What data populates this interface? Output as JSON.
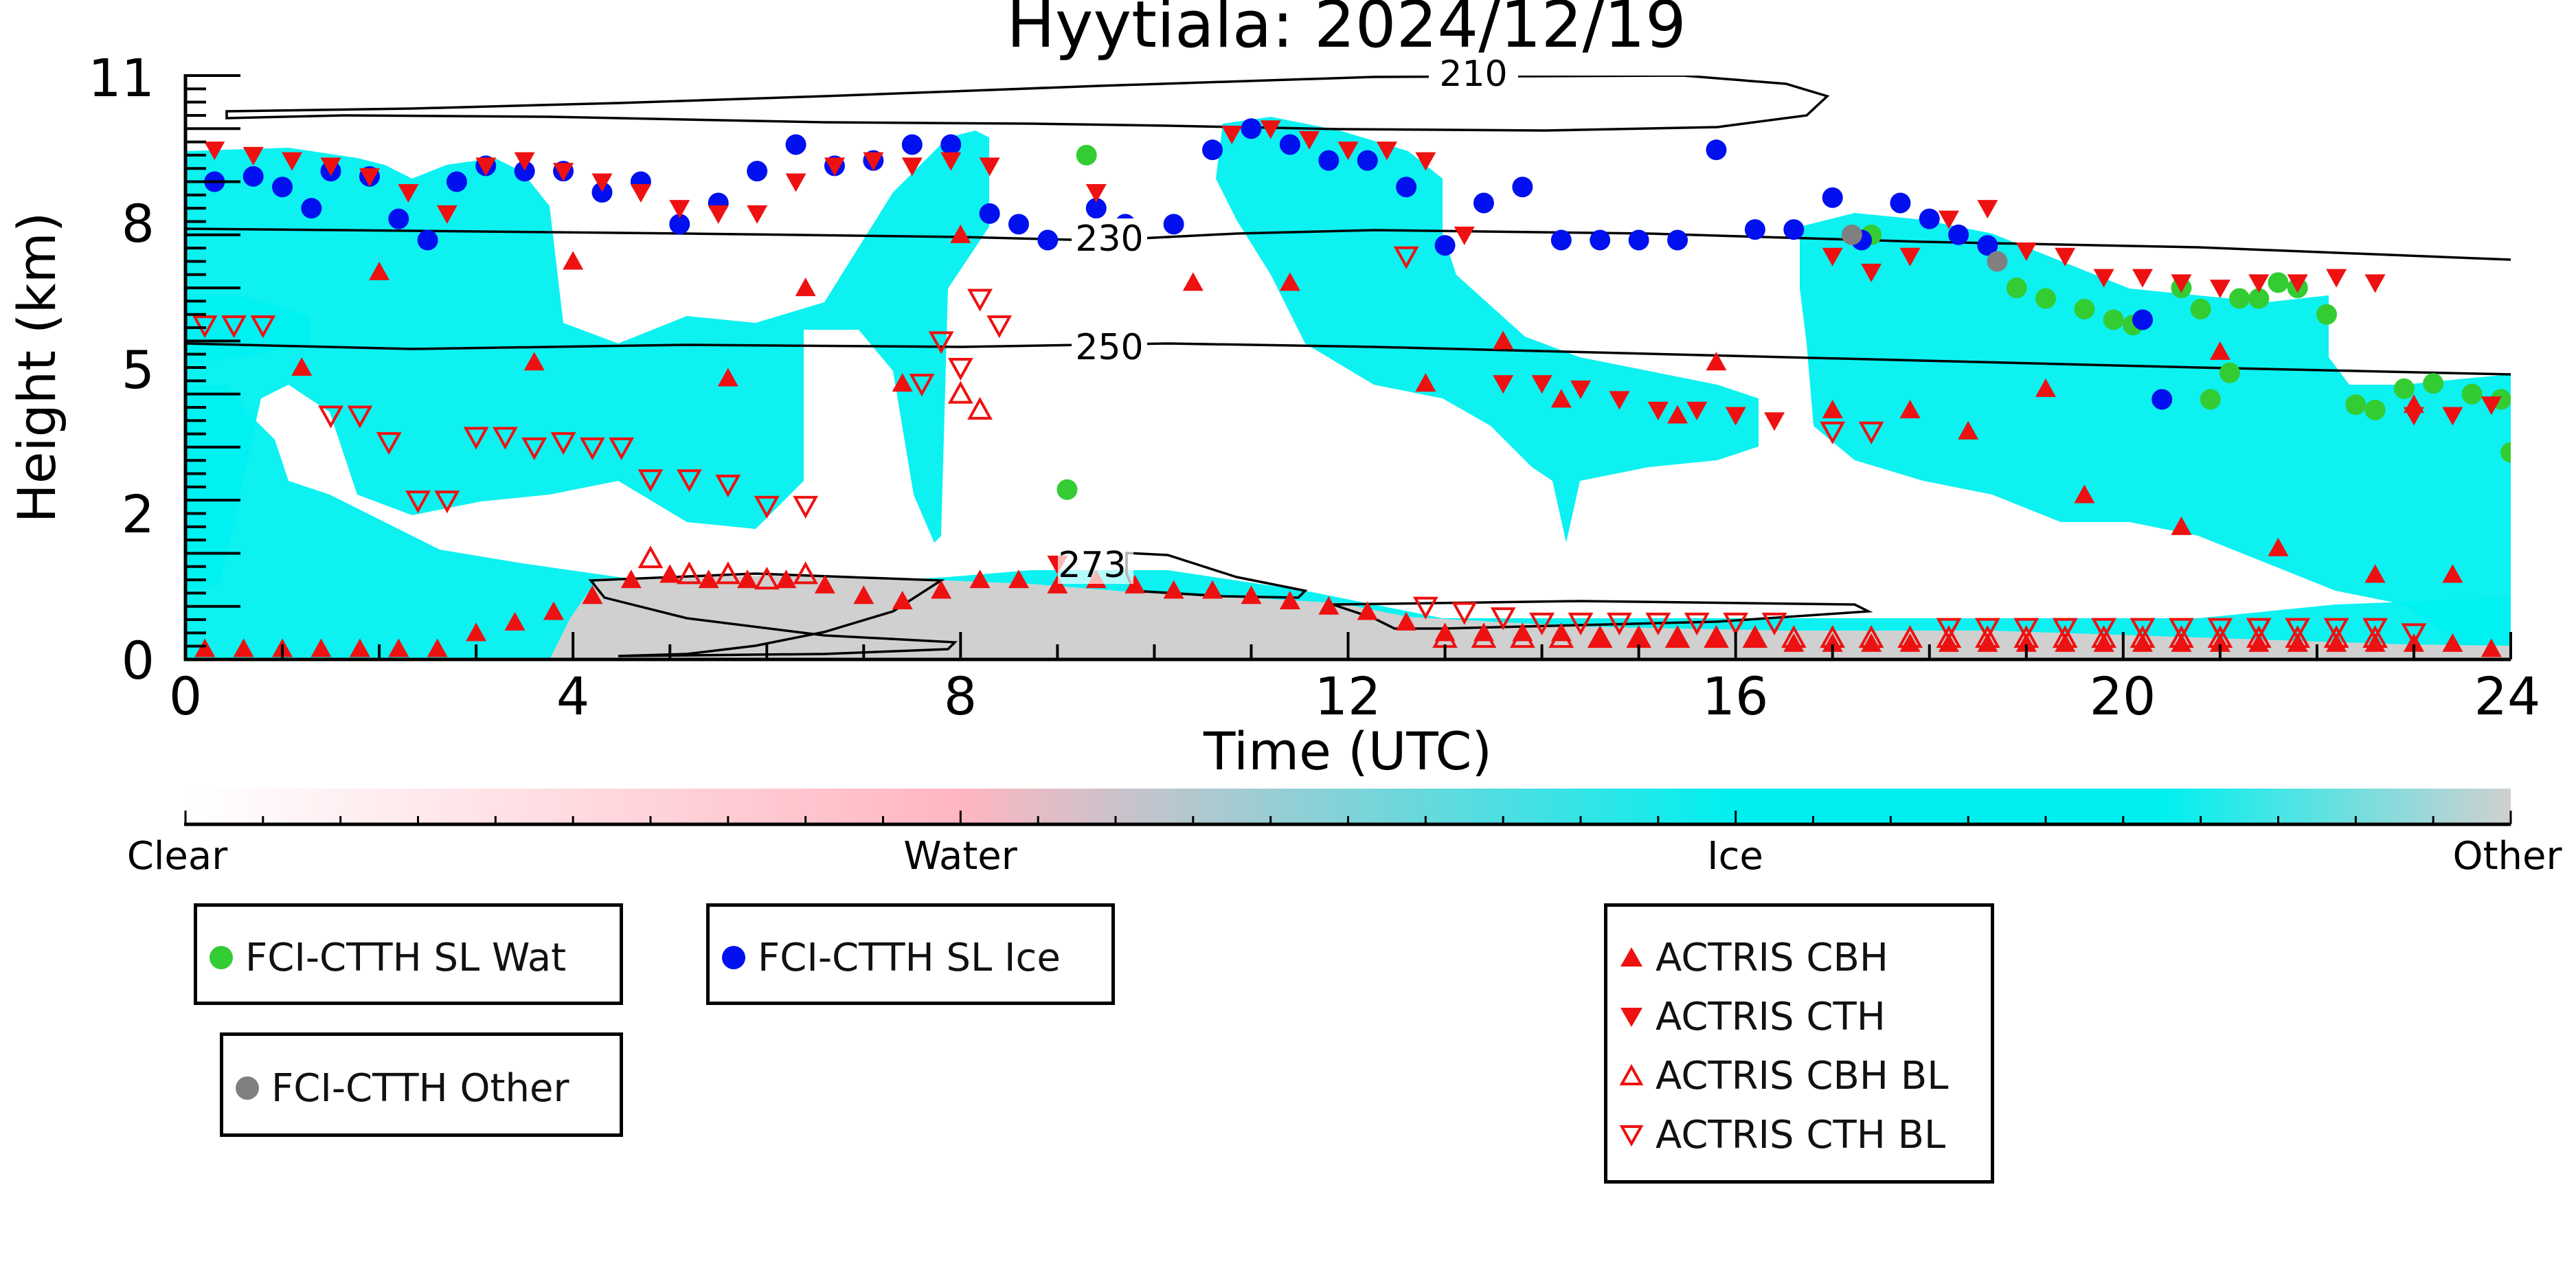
{
  "chart_data": {
    "type": "scatter",
    "title": "Hyytiala: 2024/12/19",
    "xlabel": "Time (UTC)",
    "ylabel": "Height (km)",
    "xlim": [
      0,
      24
    ],
    "ylim": [
      0,
      11
    ],
    "xticks": [
      "0",
      "4",
      "8",
      "12",
      "16",
      "20",
      "24"
    ],
    "yticks": [
      "0",
      "2",
      "5",
      "8",
      "11"
    ],
    "colorbar": {
      "ticklabels": [
        "Clear",
        "Water",
        "Ice",
        "Other"
      ],
      "colors": [
        "#ffffff",
        "#ffb6c1",
        "#00f0f0",
        "#d0d0d0"
      ]
    },
    "colors": {
      "ice_cloud": "#00f0f0",
      "other_layer": "#d0d0d0",
      "actris": "#ee1111",
      "wat": "#33cc33",
      "ice": "#0010ee",
      "other": "#808080"
    },
    "contour_labels": [
      "210",
      "230",
      "250",
      "273"
    ],
    "series": [
      {
        "name": "FCI-CTTH SL Wat",
        "marker": "circle",
        "color": "#33cc33",
        "x": [
          9.3,
          9.1,
          17.4,
          18.9,
          19.2,
          19.6,
          19.9,
          20.1,
          20.6,
          20.8,
          21.1,
          21.2,
          21.4,
          21.6,
          21.8,
          22.1,
          22.4,
          22.6,
          22.9,
          23.2,
          23.6,
          23.9,
          24.0,
          20.4,
          20.9
        ],
        "y": [
          9.5,
          3.2,
          8.0,
          7.0,
          6.8,
          6.6,
          6.4,
          6.3,
          7.0,
          6.6,
          5.4,
          6.8,
          6.8,
          7.1,
          7.0,
          6.5,
          4.8,
          4.7,
          5.1,
          5.2,
          5.0,
          4.9,
          3.9,
          4.9,
          4.9
        ]
      },
      {
        "name": "FCI-CTTH SL Ice",
        "marker": "circle",
        "color": "#0010ee",
        "x": [
          0.3,
          0.7,
          1.0,
          1.3,
          1.5,
          1.9,
          2.2,
          2.5,
          2.8,
          3.1,
          3.5,
          3.9,
          4.3,
          4.7,
          5.1,
          5.5,
          5.9,
          6.3,
          6.7,
          7.1,
          7.5,
          7.9,
          8.3,
          8.6,
          8.9,
          9.4,
          9.7,
          10.2,
          10.6,
          11.0,
          11.4,
          11.8,
          12.2,
          12.6,
          13.0,
          13.4,
          13.8,
          14.2,
          14.6,
          15.0,
          15.4,
          15.8,
          16.2,
          16.6,
          17.0,
          17.3,
          17.7,
          18.0,
          18.3,
          18.6,
          20.2,
          20.4
        ],
        "y": [
          9.0,
          9.1,
          8.9,
          8.5,
          9.2,
          9.1,
          8.3,
          7.9,
          9.0,
          9.3,
          9.2,
          9.2,
          8.8,
          9.0,
          8.2,
          8.6,
          9.2,
          9.7,
          9.3,
          9.4,
          9.7,
          9.7,
          8.4,
          8.2,
          7.9,
          8.5,
          8.2,
          8.2,
          9.6,
          10.0,
          9.7,
          9.4,
          9.4,
          8.9,
          7.8,
          8.6,
          8.9,
          7.9,
          7.9,
          7.9,
          7.9,
          9.6,
          8.1,
          8.1,
          8.7,
          7.9,
          8.6,
          8.3,
          8.0,
          7.8,
          6.4,
          4.9
        ]
      },
      {
        "name": "FCI-CTTH Other",
        "marker": "circle",
        "color": "#808080",
        "x": [
          17.2,
          18.7
        ],
        "y": [
          8.0,
          7.5
        ]
      },
      {
        "name": "ACTRIS CBH",
        "marker": "triangle-up",
        "color": "#ee1111",
        "x": [
          0.2,
          0.6,
          1.0,
          1.4,
          1.8,
          2.2,
          2.6,
          3.0,
          3.4,
          3.8,
          4.2,
          4.6,
          5.0,
          5.4,
          5.8,
          6.2,
          6.6,
          7.0,
          7.4,
          7.8,
          8.2,
          8.6,
          9.0,
          9.4,
          9.8,
          10.2,
          10.6,
          11.0,
          11.4,
          11.8,
          12.2,
          12.6,
          13.0,
          13.4,
          13.8,
          14.2,
          14.6,
          15.0,
          15.4,
          15.8,
          16.2,
          16.6,
          17.0,
          17.4,
          17.8,
          18.2,
          18.6,
          19.0,
          19.4,
          19.8,
          20.2,
          20.6,
          21.0,
          21.4,
          21.8,
          22.2,
          22.6,
          23.0,
          23.4,
          23.8,
          1.2,
          3.6,
          5.6,
          7.4,
          10.4,
          12.8,
          14.2,
          15.4,
          17.0,
          18.4,
          19.6,
          20.6,
          21.6,
          22.6,
          23.4,
          2.0,
          4.0,
          6.4,
          8.0,
          11.4,
          13.6,
          15.8,
          17.8,
          19.2,
          21.0,
          23.0
        ],
        "y": [
          0.2,
          0.2,
          0.2,
          0.2,
          0.2,
          0.2,
          0.2,
          0.5,
          0.7,
          0.9,
          1.2,
          1.5,
          1.6,
          1.5,
          1.5,
          1.5,
          1.4,
          1.2,
          1.1,
          1.3,
          1.5,
          1.5,
          1.4,
          1.5,
          1.4,
          1.3,
          1.3,
          1.2,
          1.1,
          1.0,
          0.9,
          0.7,
          0.5,
          0.5,
          0.5,
          0.5,
          0.4,
          0.4,
          0.4,
          0.4,
          0.4,
          0.3,
          0.3,
          0.3,
          0.3,
          0.3,
          0.3,
          0.3,
          0.3,
          0.3,
          0.3,
          0.3,
          0.3,
          0.3,
          0.3,
          0.3,
          0.3,
          0.3,
          0.3,
          0.2,
          5.5,
          5.6,
          5.3,
          5.2,
          7.1,
          5.2,
          4.9,
          4.6,
          4.7,
          4.3,
          3.1,
          2.5,
          2.1,
          1.6,
          1.6,
          7.3,
          7.5,
          7.0,
          8.0,
          7.1,
          6.0,
          5.6,
          4.7,
          5.1,
          5.8,
          4.8
        ]
      },
      {
        "name": "ACTRIS CTH",
        "marker": "triangle-down",
        "color": "#ee1111",
        "x": [
          0.3,
          0.7,
          1.1,
          1.5,
          1.9,
          2.3,
          2.7,
          3.1,
          3.5,
          3.9,
          4.3,
          4.7,
          5.1,
          5.5,
          5.9,
          6.3,
          6.7,
          7.1,
          7.5,
          7.9,
          8.3,
          10.8,
          11.2,
          11.6,
          12.0,
          12.4,
          12.8,
          13.2,
          13.6,
          14.0,
          14.4,
          14.8,
          15.2,
          15.6,
          16.0,
          16.4,
          17.0,
          17.4,
          17.8,
          18.2,
          18.6,
          19.0,
          19.4,
          19.8,
          20.2,
          20.6,
          21.0,
          21.4,
          21.8,
          22.2,
          22.6,
          23.0,
          23.4,
          23.8,
          9.4,
          9.0
        ],
        "y": [
          9.6,
          9.5,
          9.4,
          9.3,
          9.1,
          8.8,
          8.4,
          9.3,
          9.4,
          9.2,
          9.0,
          8.8,
          8.5,
          8.4,
          8.4,
          9.0,
          9.3,
          9.4,
          9.3,
          9.4,
          9.3,
          9.9,
          10.0,
          9.8,
          9.6,
          9.6,
          9.4,
          8.0,
          5.2,
          5.2,
          5.1,
          4.9,
          4.7,
          4.7,
          4.6,
          4.5,
          7.6,
          7.3,
          7.6,
          8.3,
          8.5,
          7.7,
          7.6,
          7.2,
          7.2,
          7.1,
          7.0,
          7.1,
          7.1,
          7.2,
          7.1,
          4.6,
          4.6,
          4.8,
          8.8,
          1.8
        ]
      },
      {
        "name": "ACTRIS CBH BL",
        "marker": "triangle-up-open",
        "color": "#ee1111",
        "x": [
          4.8,
          5.2,
          5.6,
          6.0,
          6.4,
          8.0,
          8.2,
          13.0,
          13.4,
          13.8,
          14.2,
          14.6,
          15.0,
          15.4,
          15.8,
          16.2,
          16.6,
          17.0,
          17.4,
          17.8,
          18.2,
          18.6,
          19.0,
          19.4,
          19.8,
          20.2,
          20.6,
          21.0,
          21.4,
          21.8,
          22.2,
          22.6
        ],
        "y": [
          1.9,
          1.6,
          1.6,
          1.5,
          1.6,
          5.0,
          4.7,
          0.4,
          0.4,
          0.4,
          0.4,
          0.4,
          0.4,
          0.4,
          0.4,
          0.4,
          0.4,
          0.4,
          0.4,
          0.4,
          0.4,
          0.4,
          0.4,
          0.4,
          0.4,
          0.4,
          0.4,
          0.4,
          0.4,
          0.4,
          0.4,
          0.4
        ]
      },
      {
        "name": "ACTRIS CTH BL",
        "marker": "triangle-down-open",
        "color": "#ee1111",
        "x": [
          0.2,
          0.5,
          0.8,
          1.5,
          1.8,
          2.1,
          2.4,
          2.7,
          3.0,
          3.3,
          3.6,
          3.9,
          4.2,
          4.5,
          4.8,
          5.2,
          5.6,
          6.0,
          6.4,
          7.6,
          7.8,
          8.0,
          8.2,
          8.4,
          12.8,
          13.2,
          13.6,
          14.0,
          14.4,
          14.8,
          15.2,
          15.6,
          16.0,
          16.4,
          17.0,
          17.4,
          18.2,
          18.6,
          19.0,
          19.4,
          19.8,
          20.2,
          20.6,
          21.0,
          21.4,
          21.8,
          22.2,
          22.6,
          23.0,
          12.6
        ],
        "y": [
          6.3,
          6.3,
          6.3,
          4.6,
          4.6,
          4.1,
          3.0,
          3.0,
          4.2,
          4.2,
          4.0,
          4.1,
          4.0,
          4.0,
          3.4,
          3.4,
          3.3,
          2.9,
          2.9,
          5.2,
          6.0,
          5.5,
          6.8,
          6.3,
          1.0,
          0.9,
          0.8,
          0.7,
          0.7,
          0.7,
          0.7,
          0.7,
          0.7,
          0.7,
          4.3,
          4.3,
          0.6,
          0.6,
          0.6,
          0.6,
          0.6,
          0.6,
          0.6,
          0.6,
          0.6,
          0.6,
          0.6,
          0.6,
          0.5,
          7.6
        ]
      }
    ]
  }
}
